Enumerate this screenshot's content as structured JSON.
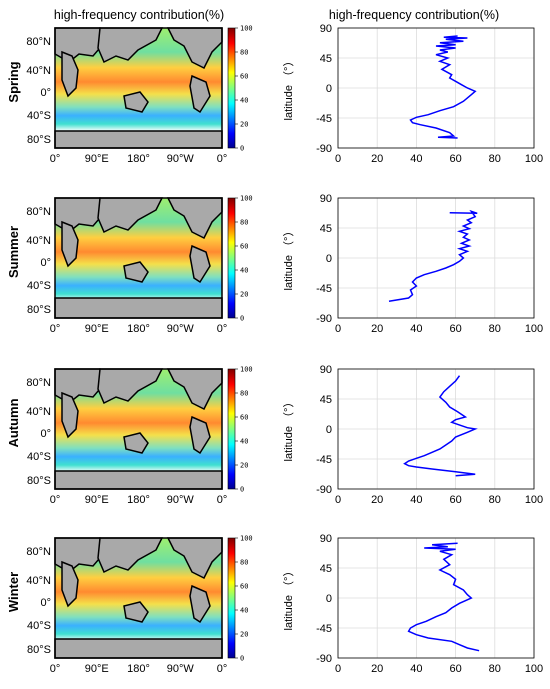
{
  "left_title": "high-frequency contribution(%)",
  "right_title": "high-frequency contribution(%)",
  "map_lat_ticks": [
    "80°N",
    "40°N",
    "0°",
    "40°S",
    "80°S"
  ],
  "map_lon_ticks": [
    "0°",
    "90°E",
    "180°",
    "90°W",
    "0°"
  ],
  "colorbar_ticks": [
    "100",
    "80",
    "60",
    "40",
    "20",
    "0"
  ],
  "colors": {
    "line": "#0000ff",
    "land": "#a9a9a9",
    "ice": "#ffffff"
  },
  "chart_data": [
    {
      "type": "heatmap",
      "season": "Spring",
      "colorbar_range": [
        0,
        100
      ],
      "colormap": "jet"
    },
    {
      "type": "line",
      "season": "Spring",
      "xlim": [
        0,
        100
      ],
      "ylim": [
        -90,
        90
      ],
      "xticks": [
        0,
        20,
        40,
        60,
        80,
        100
      ],
      "yticks": [
        90,
        45,
        0,
        -45,
        -90
      ],
      "ylabel": "latitude （°）",
      "grid": true,
      "series": [
        {
          "x": [
            61,
            54,
            66,
            55,
            64,
            52,
            60,
            50,
            60,
            52,
            56,
            50,
            56,
            52,
            57,
            53,
            58,
            57,
            60,
            63,
            66,
            70,
            68,
            64,
            59,
            52,
            46,
            40,
            37,
            38,
            42,
            50,
            57,
            59,
            51,
            61
          ],
          "y": [
            78,
            76,
            75,
            73,
            70,
            68,
            65,
            63,
            60,
            57,
            54,
            50,
            45,
            40,
            35,
            28,
            20,
            15,
            10,
            5,
            0,
            -5,
            -10,
            -20,
            -28,
            -34,
            -40,
            -44,
            -48,
            -52,
            -55,
            -60,
            -67,
            -72,
            -74,
            -75
          ]
        }
      ]
    },
    {
      "type": "heatmap",
      "season": "Summer",
      "colorbar_range": [
        0,
        100
      ],
      "colormap": "jet"
    },
    {
      "type": "line",
      "season": "Summer",
      "xlim": [
        0,
        100
      ],
      "ylim": [
        -90,
        90
      ],
      "xticks": [
        0,
        20,
        40,
        60,
        80,
        100
      ],
      "yticks": [
        90,
        45,
        0,
        -45,
        -90
      ],
      "ylabel": "latitude （°）",
      "grid": true,
      "series": [
        {
          "x": [
            57,
            71,
            68,
            70,
            66,
            68,
            64,
            67,
            62,
            66,
            64,
            67,
            63,
            67,
            62,
            66,
            62,
            64,
            62,
            59,
            55,
            50,
            44,
            40,
            38,
            40,
            37,
            38,
            36,
            26
          ],
          "y": [
            68,
            67,
            70,
            62,
            57,
            53,
            48,
            44,
            40,
            36,
            31,
            27,
            22,
            18,
            14,
            10,
            5,
            0,
            -5,
            -10,
            -15,
            -20,
            -25,
            -30,
            -36,
            -42,
            -48,
            -55,
            -60,
            -65
          ]
        }
      ]
    },
    {
      "type": "heatmap",
      "season": "Autumn",
      "colorbar_range": [
        0,
        100
      ],
      "colormap": "jet"
    },
    {
      "type": "line",
      "season": "Autumn",
      "xlim": [
        0,
        100
      ],
      "ylim": [
        -90,
        90
      ],
      "xticks": [
        0,
        20,
        40,
        60,
        80,
        100
      ],
      "yticks": [
        90,
        45,
        0,
        -45,
        -90
      ],
      "ylabel": "latitude （°）",
      "grid": true,
      "series": [
        {
          "x": [
            62,
            60,
            57,
            54,
            52,
            55,
            57,
            61,
            65,
            60,
            58,
            63,
            66,
            70,
            66,
            60,
            58,
            55,
            52,
            48,
            44,
            40,
            36,
            34,
            36,
            40,
            48,
            60,
            70,
            60
          ],
          "y": [
            80,
            72,
            64,
            56,
            48,
            40,
            33,
            26,
            18,
            14,
            10,
            5,
            2,
            0,
            -5,
            -12,
            -18,
            -24,
            -30,
            -35,
            -40,
            -44,
            -48,
            -52,
            -55,
            -57,
            -60,
            -64,
            -68,
            -70
          ]
        }
      ]
    },
    {
      "type": "heatmap",
      "season": "Winter",
      "colorbar_range": [
        0,
        100
      ],
      "colormap": "jet"
    },
    {
      "type": "line",
      "season": "Winter",
      "xlim": [
        0,
        100
      ],
      "ylim": [
        -90,
        90
      ],
      "xticks": [
        0,
        20,
        40,
        60,
        80,
        100
      ],
      "yticks": [
        90,
        45,
        0,
        -45,
        -90
      ],
      "ylabel": "latitude （°）",
      "grid": true,
      "series": [
        {
          "x": [
            61,
            48,
            56,
            44,
            60,
            52,
            58,
            54,
            57,
            52,
            57,
            60,
            59,
            64,
            66,
            68,
            62,
            58,
            55,
            50,
            45,
            40,
            37,
            36,
            40,
            46,
            58,
            62,
            66,
            72
          ],
          "y": [
            82,
            80,
            77,
            75,
            73,
            70,
            65,
            58,
            50,
            42,
            35,
            28,
            20,
            12,
            5,
            0,
            -8,
            -15,
            -22,
            -28,
            -35,
            -40,
            -45,
            -50,
            -55,
            -60,
            -65,
            -70,
            -75,
            -79
          ]
        }
      ]
    }
  ],
  "panels": [
    {
      "season": "Spring"
    },
    {
      "season": "Summer"
    },
    {
      "season": "Autumn"
    },
    {
      "season": "Winter"
    }
  ]
}
